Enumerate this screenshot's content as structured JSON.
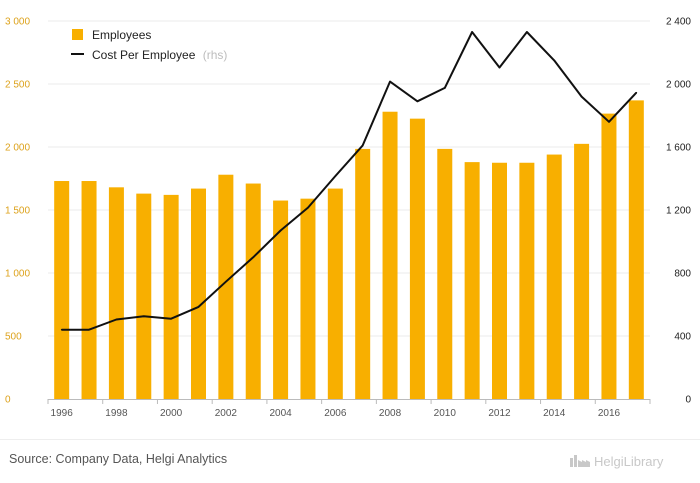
{
  "chart_data": {
    "type": "bar",
    "x": [
      1996,
      1997,
      1998,
      1999,
      2000,
      2001,
      2002,
      2003,
      2004,
      2005,
      2006,
      2007,
      2008,
      2009,
      2010,
      2011,
      2012,
      2013,
      2014,
      2015,
      2016,
      2017
    ],
    "x_tick_labels": [
      "1996",
      "1998",
      "2000",
      "2002",
      "2004",
      "2006",
      "2008",
      "2010",
      "2012",
      "2014",
      "2016"
    ],
    "series": [
      {
        "name": "Employees",
        "type": "bar",
        "axis": "left",
        "values": [
          1730,
          1730,
          1680,
          1630,
          1620,
          1670,
          1780,
          1710,
          1575,
          1590,
          1670,
          1985,
          2280,
          2225,
          1985,
          1880,
          1875,
          1875,
          1940,
          2025,
          2265,
          2370
        ]
      },
      {
        "name": "Cost Per Employee",
        "name_suffix": "(rhs)",
        "type": "line",
        "axis": "right",
        "values": [
          440,
          440,
          505,
          525,
          510,
          585,
          745,
          900,
          1070,
          1215,
          1415,
          1610,
          2015,
          1890,
          1975,
          2330,
          2105,
          2330,
          2150,
          1920,
          1760,
          1945
        ]
      }
    ],
    "y_left": {
      "min": 0,
      "max": 3000,
      "ticks": [
        0,
        500,
        1000,
        1500,
        2000,
        2500,
        3000
      ],
      "tick_labels": [
        "0",
        "500",
        "1 000",
        "1 500",
        "2 000",
        "2 500",
        "3 000"
      ]
    },
    "y_right": {
      "min": 0,
      "max": 2400,
      "ticks": [
        0,
        400,
        800,
        1200,
        1600,
        2000,
        2400
      ],
      "tick_labels": [
        "0",
        "400",
        "800",
        "1 200",
        "1 600",
        "2 000",
        "2 400"
      ]
    },
    "grid": true,
    "legend_position": "top-left",
    "colors": {
      "bar": "#F8AF00",
      "line": "#111111",
      "left_ticks": "#DDA21B",
      "right_ticks": "#222222",
      "grid": "#ebebeb"
    }
  },
  "footer": {
    "source": "Source: Company Data, Helgi Analytics",
    "logo_text": "HelgiLibrary",
    "logo_icon": "factory-icon"
  }
}
